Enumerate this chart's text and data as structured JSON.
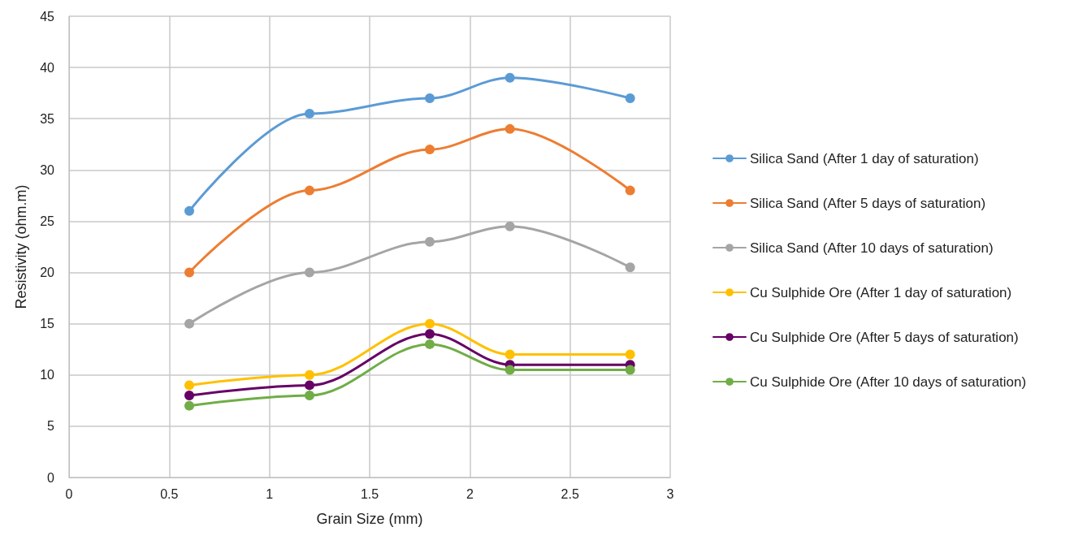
{
  "chart_data": {
    "type": "line",
    "xlabel": "Grain Size (mm)",
    "ylabel": "Resistivity (ohm.m)",
    "x": [
      0.6,
      1.2,
      1.8,
      2.2,
      2.8
    ],
    "series": [
      {
        "name": "Silica Sand (After 1 day of saturation)",
        "color": "#5b9bd5",
        "values": [
          26,
          35.5,
          37,
          39,
          37
        ]
      },
      {
        "name": "Silica Sand (After 5 days of saturation)",
        "color": "#ed7d31",
        "values": [
          20,
          28,
          32,
          34,
          28
        ]
      },
      {
        "name": "Silica Sand (After 10 days of saturation)",
        "color": "#a5a5a5",
        "values": [
          15,
          20,
          23,
          24.5,
          20.5
        ]
      },
      {
        "name": "Cu Sulphide Ore (After 1 day of saturation)",
        "color": "#ffc000",
        "values": [
          9,
          10,
          15,
          12,
          12
        ]
      },
      {
        "name": "Cu Sulphide Ore (After 5 days of saturation)",
        "color": "#660066",
        "values": [
          8,
          9,
          14,
          11,
          11
        ]
      },
      {
        "name": "Cu Sulphide Ore (After 10 days of saturation)",
        "color": "#70ad47",
        "values": [
          7,
          8,
          13,
          10.5,
          10.5
        ]
      }
    ],
    "xlim": [
      0,
      3
    ],
    "xticks": [
      0,
      0.5,
      1,
      1.5,
      2,
      2.5,
      3
    ],
    "ylim": [
      0,
      45
    ],
    "yticks": [
      0,
      5,
      10,
      15,
      20,
      25,
      30,
      35,
      40,
      45
    ],
    "grid": true,
    "legend": "right",
    "marker": "circle",
    "line_style": "solid"
  }
}
